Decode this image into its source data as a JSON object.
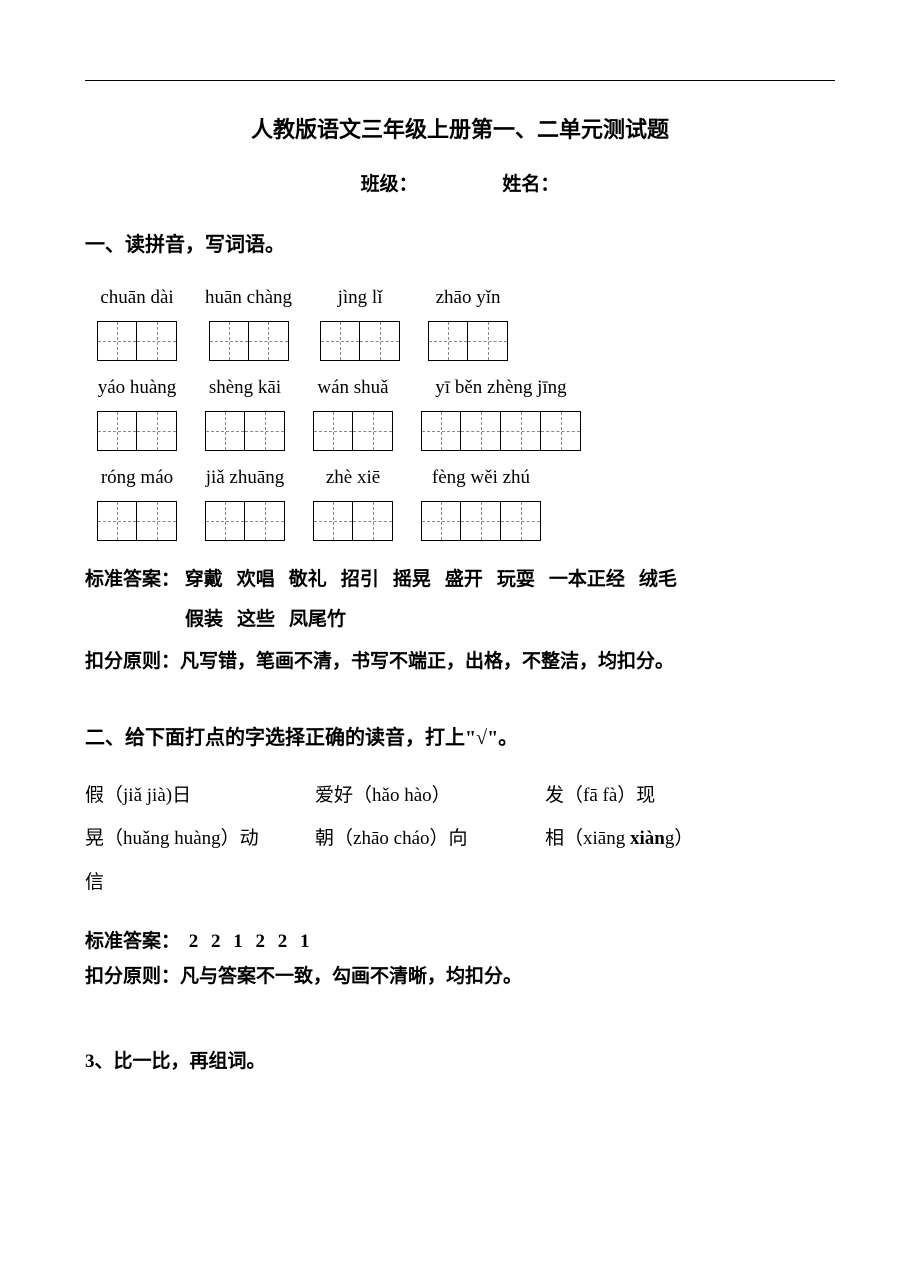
{
  "title": "人教版语文三年级上册第一、二单元测试题",
  "class_label": "班级：",
  "name_label": "姓名：",
  "q1": {
    "heading": "一、读拼音，写词语。",
    "rows": [
      [
        {
          "pinyin": "chuān dài",
          "boxes": 2
        },
        {
          "pinyin": "huān chàng",
          "boxes": 2
        },
        {
          "pinyin": "jìng  lǐ",
          "boxes": 2
        },
        {
          "pinyin": "zhāo  yǐn",
          "boxes": 2
        }
      ],
      [
        {
          "pinyin": "yáo huàng",
          "boxes": 2
        },
        {
          "pinyin": "shèng kāi",
          "boxes": 2
        },
        {
          "pinyin": "wán shuǎ",
          "boxes": 2
        },
        {
          "pinyin": "yī běn zhèng jīng",
          "boxes": 4
        }
      ],
      [
        {
          "pinyin": "róng máo",
          "boxes": 2
        },
        {
          "pinyin": "jiǎ zhuāng",
          "boxes": 2
        },
        {
          "pinyin": "zhè xiē",
          "boxes": 2
        },
        {
          "pinyin": "fèng wěi zhú",
          "boxes": 3
        }
      ]
    ],
    "answer_label": "标准答案：",
    "answers_line1": [
      "穿戴",
      "欢唱",
      "敬礼",
      "招引",
      "摇晃",
      "盛开",
      "玩耍",
      "一本正经",
      "绒毛"
    ],
    "answers_line2": [
      "假装",
      "这些",
      "凤尾竹"
    ],
    "penalty": "扣分原则：凡写错，笔画不清，书写不端正，出格，不整洁，均扣分。"
  },
  "q2": {
    "heading": "二、给下面打点的字选择正确的读音，打上\"√\"。",
    "items": [
      {
        "pre": "假（",
        "opts": "jiǎ  jià",
        "post": ")日",
        "bold_opt": ""
      },
      {
        "pre": "爱好（",
        "opts": "hǎo  hào",
        "post": "）",
        "bold_opt": ""
      },
      {
        "pre": "发（",
        "opts": "fā  fà",
        "post": "）现",
        "bold_opt": ""
      },
      {
        "pre": "晃（",
        "opts": "huǎng  huàng",
        "post": "）动",
        "bold_opt": ""
      },
      {
        "pre": "朝（",
        "opts": "zhāo  cháo",
        "post": "）向",
        "bold_opt": ""
      },
      {
        "pre": "相（",
        "opts": "xiāng  ",
        "post": "）",
        "bold_opt": "xiàn",
        "trail": "g"
      },
      {
        "pre": "信",
        "opts": "",
        "post": "",
        "bold_opt": ""
      }
    ],
    "answer_label": "标准答案：",
    "answer_nums": "2 2 1 2 2 1",
    "penalty": "扣分原则：凡与答案不一致，勾画不清晰，均扣分。"
  },
  "q3": {
    "num": "3",
    "heading": "、比一比，再组词。"
  }
}
